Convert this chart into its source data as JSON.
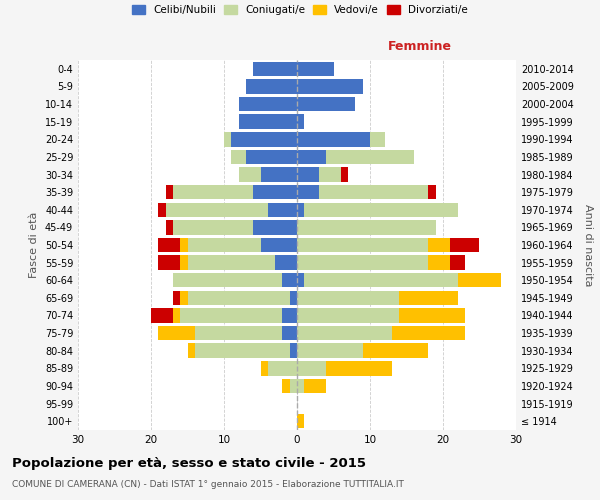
{
  "age_groups": [
    "100+",
    "95-99",
    "90-94",
    "85-89",
    "80-84",
    "75-79",
    "70-74",
    "65-69",
    "60-64",
    "55-59",
    "50-54",
    "45-49",
    "40-44",
    "35-39",
    "30-34",
    "25-29",
    "20-24",
    "15-19",
    "10-14",
    "5-9",
    "0-4"
  ],
  "birth_years": [
    "≤ 1914",
    "1915-1919",
    "1920-1924",
    "1925-1929",
    "1930-1934",
    "1935-1939",
    "1940-1944",
    "1945-1949",
    "1950-1954",
    "1955-1959",
    "1960-1964",
    "1965-1969",
    "1970-1974",
    "1975-1979",
    "1980-1984",
    "1985-1989",
    "1990-1994",
    "1995-1999",
    "2000-2004",
    "2005-2009",
    "2010-2014"
  ],
  "male_celibe": [
    0,
    0,
    0,
    0,
    1,
    2,
    2,
    1,
    2,
    3,
    5,
    6,
    4,
    6,
    5,
    7,
    9,
    8,
    8,
    7,
    6
  ],
  "male_coniugato": [
    0,
    0,
    1,
    4,
    13,
    12,
    14,
    14,
    15,
    12,
    10,
    11,
    14,
    11,
    3,
    2,
    1,
    0,
    0,
    0,
    0
  ],
  "male_vedovo": [
    0,
    0,
    1,
    1,
    1,
    5,
    1,
    1,
    0,
    1,
    1,
    0,
    0,
    0,
    0,
    0,
    0,
    0,
    0,
    0,
    0
  ],
  "male_divorziato": [
    0,
    0,
    0,
    0,
    0,
    0,
    3,
    1,
    0,
    3,
    3,
    1,
    1,
    1,
    0,
    0,
    0,
    0,
    0,
    0,
    0
  ],
  "female_celibe": [
    0,
    0,
    0,
    0,
    0,
    0,
    0,
    0,
    1,
    0,
    0,
    0,
    1,
    3,
    3,
    4,
    10,
    1,
    8,
    9,
    5
  ],
  "female_coniugato": [
    0,
    0,
    1,
    4,
    9,
    13,
    14,
    14,
    21,
    18,
    18,
    19,
    21,
    15,
    3,
    12,
    2,
    0,
    0,
    0,
    0
  ],
  "female_vedovo": [
    1,
    0,
    3,
    9,
    9,
    10,
    9,
    8,
    6,
    3,
    3,
    0,
    0,
    0,
    0,
    0,
    0,
    0,
    0,
    0,
    0
  ],
  "female_divorziato": [
    0,
    0,
    0,
    0,
    0,
    0,
    0,
    0,
    0,
    2,
    4,
    0,
    0,
    1,
    1,
    0,
    0,
    0,
    0,
    0,
    0
  ],
  "colors": {
    "celibe": "#4472C4",
    "coniugato": "#c5d9a0",
    "vedovo": "#ffc000",
    "divorziato": "#cc0000"
  },
  "title": "Popolazione per età, sesso e stato civile - 2015",
  "subtitle": "COMUNE DI CAMERANA (CN) - Dati ISTAT 1° gennaio 2015 - Elaborazione TUTTITALIA.IT",
  "ylabel_left": "Fasce di età",
  "ylabel_right": "Anni di nascita",
  "xlabel_right": "Femmine",
  "xlim": 30,
  "legend_labels": [
    "Celibi/Nubili",
    "Coniugati/e",
    "Vedovi/e",
    "Divorziati/e"
  ],
  "bg_color": "#f5f5f5",
  "plot_bg_color": "#ffffff"
}
